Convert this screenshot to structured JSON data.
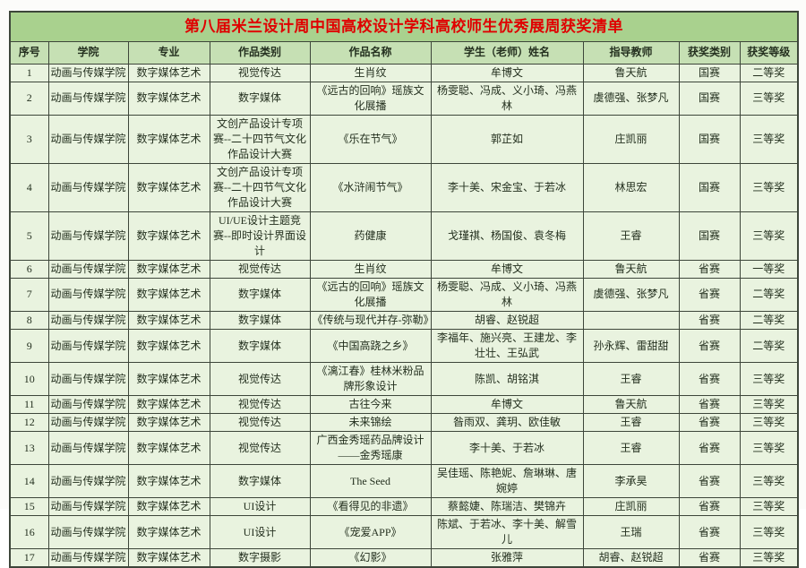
{
  "title": "第八届米兰设计周中国高校设计学科高校师生优秀展周获奖清单",
  "columns": [
    "序号",
    "学院",
    "专业",
    "作品类别",
    "作品名称",
    "学生（老师）姓名",
    "指导教师",
    "获奖类别",
    "获奖等级"
  ],
  "rows": [
    {
      "no": "1",
      "college": "动画与传媒学院",
      "major": "数字媒体艺术",
      "category": "视觉传达",
      "work": "生肖纹",
      "students": "牟博文",
      "advisor": "鲁天航",
      "award_type": "国赛",
      "award_level": "二等奖"
    },
    {
      "no": "2",
      "college": "动画与传媒学院",
      "major": "数字媒体艺术",
      "category": "数字媒体",
      "work": "《远古的回响》瑶族文化展播",
      "students": "杨雯聪、冯成、义小琦、冯燕林",
      "advisor": "虞德强、张梦凡",
      "award_type": "国赛",
      "award_level": "三等奖"
    },
    {
      "no": "3",
      "college": "动画与传媒学院",
      "major": "数字媒体艺术",
      "category": "文创产品设计专项赛--二十四节气文化作品设计大赛",
      "work": "《乐在节气》",
      "students": "郭芷如",
      "advisor": "庄凯丽",
      "award_type": "国赛",
      "award_level": "三等奖"
    },
    {
      "no": "4",
      "college": "动画与传媒学院",
      "major": "数字媒体艺术",
      "category": "文创产品设计专项赛--二十四节气文化作品设计大赛",
      "work": "《水浒闹节气》",
      "students": "李十美、宋金宝、于若冰",
      "advisor": "林思宏",
      "award_type": "国赛",
      "award_level": "三等奖"
    },
    {
      "no": "5",
      "college": "动画与传媒学院",
      "major": "数字媒体艺术",
      "category": "UI/UE设计主题竞赛--即时设计界面设计",
      "work": "药健康",
      "students": "戈瑾祺、杨国俊、袁冬梅",
      "advisor": "王睿",
      "award_type": "国赛",
      "award_level": "三等奖"
    },
    {
      "no": "6",
      "college": "动画与传媒学院",
      "major": "数字媒体艺术",
      "category": "视觉传达",
      "work": "生肖纹",
      "students": "牟博文",
      "advisor": "鲁天航",
      "award_type": "省赛",
      "award_level": "一等奖"
    },
    {
      "no": "7",
      "college": "动画与传媒学院",
      "major": "数字媒体艺术",
      "category": "数字媒体",
      "work": "《远古的回响》瑶族文化展播",
      "students": "杨雯聪、冯成、义小琦、冯燕林",
      "advisor": "虞德强、张梦凡",
      "award_type": "省赛",
      "award_level": "二等奖"
    },
    {
      "no": "8",
      "college": "动画与传媒学院",
      "major": "数字媒体艺术",
      "category": "数字媒体",
      "work": "《传统与现代并存-弥勒》",
      "students": "胡睿、赵锐超",
      "advisor": "",
      "award_type": "省赛",
      "award_level": "二等奖"
    },
    {
      "no": "9",
      "college": "动画与传媒学院",
      "major": "数字媒体艺术",
      "category": "数字媒体",
      "work": "《中国高跷之乡》",
      "students": "李福年、施兴亮、王建龙、李壮壮、王弘武",
      "advisor": "孙永辉、雷甜甜",
      "award_type": "省赛",
      "award_level": "二等奖"
    },
    {
      "no": "10",
      "college": "动画与传媒学院",
      "major": "数字媒体艺术",
      "category": "视觉传达",
      "work": "《漓江春》桂林米粉品牌形象设计",
      "students": "陈凯、胡铭淇",
      "advisor": "王睿",
      "award_type": "省赛",
      "award_level": "三等奖"
    },
    {
      "no": "11",
      "college": "动画与传媒学院",
      "major": "数字媒体艺术",
      "category": "视觉传达",
      "work": "古往今来",
      "students": "牟博文",
      "advisor": "鲁天航",
      "award_type": "省赛",
      "award_level": "三等奖"
    },
    {
      "no": "12",
      "college": "动画与传媒学院",
      "major": "数字媒体艺术",
      "category": "视觉传达",
      "work": "未来锦绘",
      "students": "昝雨双、龚玥、欧佳敏",
      "advisor": "王睿",
      "award_type": "省赛",
      "award_level": "三等奖"
    },
    {
      "no": "13",
      "college": "动画与传媒学院",
      "major": "数字媒体艺术",
      "category": "视觉传达",
      "work": "广西金秀瑶药品牌设计——金秀瑶康",
      "students": "李十美、于若冰",
      "advisor": "王睿",
      "award_type": "省赛",
      "award_level": "三等奖"
    },
    {
      "no": "14",
      "college": "动画与传媒学院",
      "major": "数字媒体艺术",
      "category": "数字媒体",
      "work": "The Seed",
      "students": "吴佳瑶、陈艳妮、詹琳琳、唐婉婷",
      "advisor": "李承昊",
      "award_type": "省赛",
      "award_level": "三等奖"
    },
    {
      "no": "15",
      "college": "动画与传媒学院",
      "major": "数字媒体艺术",
      "category": "UI设计",
      "work": "《看得见的非遗》",
      "students": "蔡懿婕、陈瑞洁、樊锦卉",
      "advisor": "庄凯丽",
      "award_type": "省赛",
      "award_level": "三等奖"
    },
    {
      "no": "16",
      "college": "动画与传媒学院",
      "major": "数字媒体艺术",
      "category": "UI设计",
      "work": "《宠爱APP》",
      "students": "陈斌、于若冰、李十美、解雪儿",
      "advisor": "王瑞",
      "award_type": "省赛",
      "award_level": "三等奖"
    },
    {
      "no": "17",
      "college": "动画与传媒学院",
      "major": "数字媒体艺术",
      "category": "数字摄影",
      "work": "《幻影》",
      "students": "张雅萍",
      "advisor": "胡睿、赵锐超",
      "award_type": "省赛",
      "award_level": "三等奖"
    }
  ],
  "colors": {
    "title_text": "#e00000",
    "title_band_bg": "#a9d18e",
    "header_bg": "#c6e0b4",
    "row_bg": "#e9f3df",
    "grid_border": "#3d463a"
  }
}
